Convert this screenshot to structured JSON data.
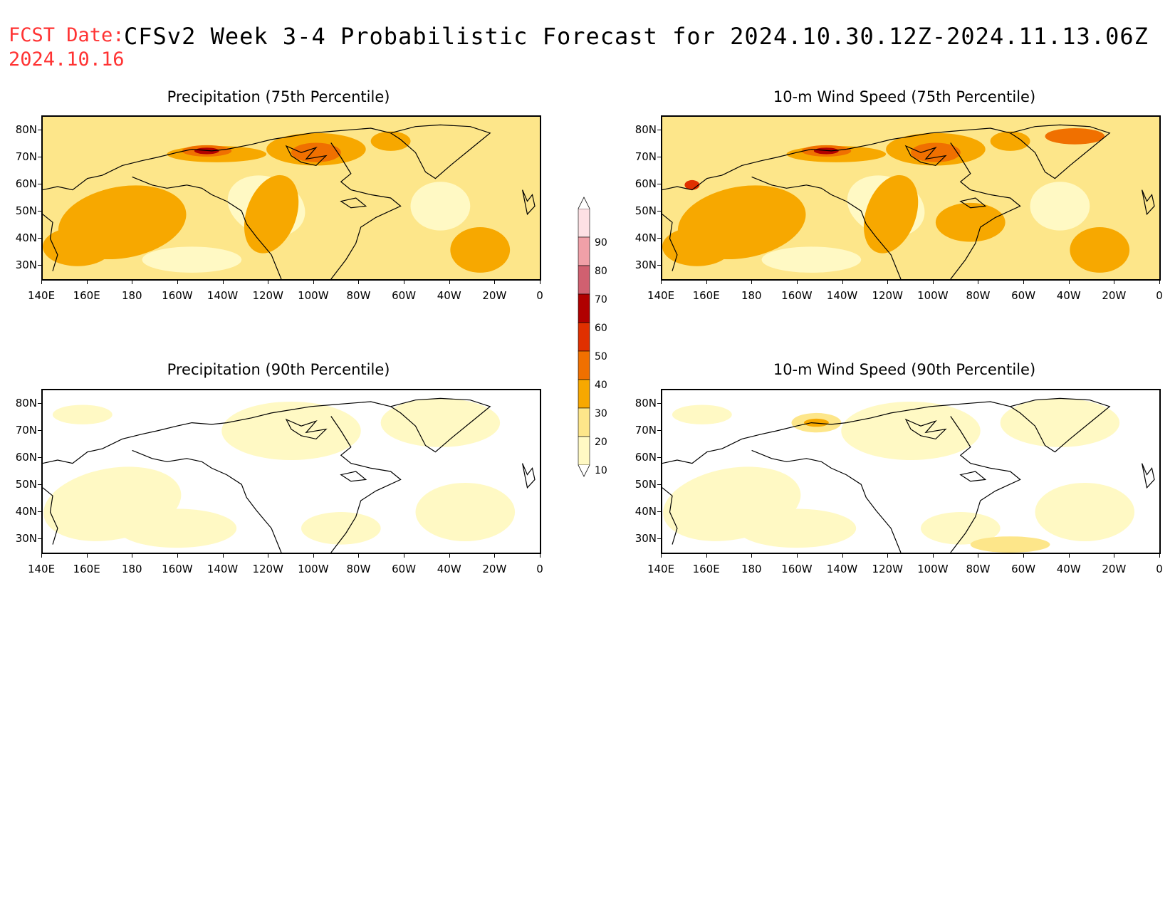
{
  "header": {
    "fcst_label": "FCST Date:",
    "fcst_date": "2024.10.16",
    "title": "CFSv2 Week 3-4 Probabilistic Forecast for 2024.10.30.12Z-2024.11.13.06Z"
  },
  "axes": {
    "lat_ticks": [
      "80N",
      "70N",
      "60N",
      "50N",
      "40N",
      "30N"
    ],
    "lon_ticks": [
      "140E",
      "160E",
      "180",
      "160W",
      "140W",
      "120W",
      "100W",
      "80W",
      "60W",
      "40W",
      "20W",
      "0"
    ]
  },
  "panels": [
    {
      "id": "precip75",
      "title": "Precipitation (75th Percentile)",
      "base": "#fde68a",
      "level": "high"
    },
    {
      "id": "wind75",
      "title": "10-m Wind Speed (75th Percentile)",
      "base": "#fde68a",
      "level": "high"
    },
    {
      "id": "precip90",
      "title": "Precipitation (90th Percentile)",
      "base": "#ffffff",
      "level": "low"
    },
    {
      "id": "wind90",
      "title": "10-m Wind Speed (90th Percentile)",
      "base": "#ffffff",
      "level": "low"
    }
  ],
  "colorbar": {
    "levels": [
      "10",
      "20",
      "30",
      "40",
      "50",
      "60",
      "70",
      "80",
      "90"
    ],
    "colors": [
      "#fff9c4",
      "#fde68a",
      "#f7a800",
      "#f07000",
      "#e03000",
      "#b00000",
      "#d06070",
      "#f0a0a8",
      "#fde0e4"
    ]
  }
}
